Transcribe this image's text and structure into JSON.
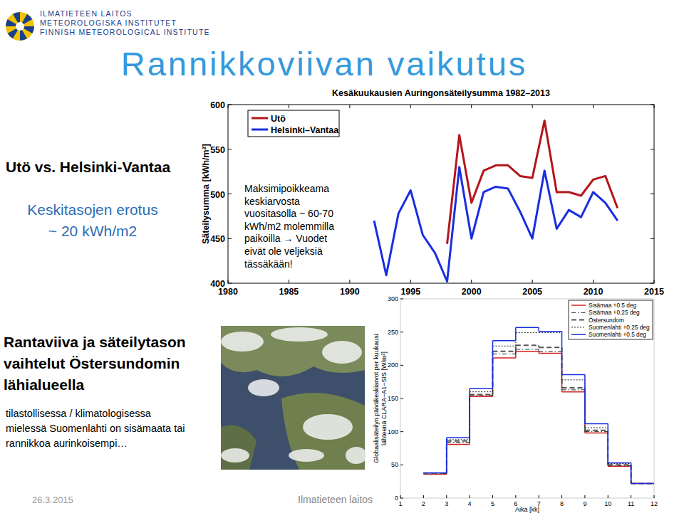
{
  "slide": {
    "logo": [
      "ILMATIETEEN LAITOS",
      "METEOROLOGISKA INSTITUTET",
      "FINNISH METEOROLOGICAL INSTITUTE"
    ],
    "title": "Rannikkoviivan vaikutus",
    "heading1": "Utö vs. Helsinki-Vantaa",
    "note1": [
      "Keskitasojen erotus",
      "~ 20 kWh/m2"
    ],
    "heading2": [
      "Rantaviiva ja säteilytason",
      "vaihtelut Östersundomin",
      "lähialueella"
    ],
    "note2": [
      "tilastollisessa / klimatologisessa",
      "mielessä Suomenlahti on sisämaata tai",
      "rannikkoa aurinkoisempi…"
    ],
    "footer_date": "26.3.2015",
    "footer_org": "Ilmatieteen laitos"
  },
  "chart_data": [
    {
      "type": "line",
      "title": "Kesäkuukausien Auringonsäteilysumma 1982–2013",
      "y_label": "Säteilysumma [kWh/m²]",
      "annotation": [
        "Maksimipoikkeama",
        "keskiarvosta",
        "vuositasolla ~ 60-70",
        "kWh/m2 molemmilla",
        "paikoilla → Vuodet",
        "eivät ole veljeksiä",
        "tässäkään!"
      ],
      "x": [
        1992,
        1993,
        1994,
        1995,
        1996,
        1997,
        1998,
        1999,
        2000,
        2001,
        2002,
        2003,
        2004,
        2005,
        2006,
        2007,
        2008,
        2009,
        2010,
        2011,
        2012
      ],
      "series": [
        {
          "name": "Utö",
          "color": "#b3161c",
          "values": [
            null,
            null,
            null,
            null,
            null,
            null,
            444,
            566,
            490,
            526,
            532,
            532,
            520,
            518,
            582,
            502,
            502,
            498,
            516,
            520,
            484
          ]
        },
        {
          "name": "Helsinki–Vantaa",
          "color": "#1a2ee0",
          "values": [
            470,
            409,
            478,
            504,
            454,
            434,
            402,
            530,
            450,
            502,
            508,
            506,
            480,
            450,
            526,
            461,
            482,
            474,
            502,
            490,
            470
          ]
        }
      ],
      "xlim": [
        1980,
        2015
      ],
      "xticks": [
        1980,
        1985,
        1990,
        1995,
        2000,
        2005,
        2010,
        2015
      ],
      "ylim": [
        400,
        600
      ],
      "yticks": [
        400,
        450,
        500,
        550,
        600
      ],
      "legend": "upper left"
    },
    {
      "type": "step",
      "y_label": [
        "Globaalisäteilyn päiväkeskiarvot per kuukausi",
        "lähteenä CLARA−A1−SIS [W/m²]"
      ],
      "x_label": "Aika [kk]",
      "bins": [
        2,
        3,
        4,
        5,
        6,
        7,
        8,
        9,
        10,
        11,
        12
      ],
      "series": [
        {
          "name": "Sisämaa +0.5 deg",
          "color": "#d42020",
          "line_style": "solid",
          "values": [
            36,
            81,
            153,
            211,
            221,
            218,
            160,
            98,
            48,
            22
          ]
        },
        {
          "name": "Sisämaa +0.25 deg",
          "color": "#222222",
          "line_style": "dashdot",
          "values": [
            37,
            84,
            155,
            217,
            224,
            221,
            163,
            100,
            49,
            22
          ]
        },
        {
          "name": "Östersundom",
          "color": "#555555",
          "line_style": "dashed",
          "values": [
            37,
            86,
            156,
            221,
            230,
            227,
            166,
            102,
            50,
            22
          ]
        },
        {
          "name": "Suomenlahti +0.25 deg",
          "color": "#222222",
          "line_style": "dotted",
          "values": [
            38,
            88,
            160,
            229,
            249,
            249,
            178,
            106,
            52,
            22
          ]
        },
        {
          "name": "Suomenlahti +0.5 deg",
          "color": "#1a2ee0",
          "line_style": "solid",
          "values": [
            38,
            91,
            165,
            237,
            257,
            251,
            186,
            112,
            53,
            22
          ]
        }
      ],
      "xlim": [
        1,
        12
      ],
      "xticks": [
        1,
        2,
        3,
        4,
        5,
        6,
        7,
        8,
        9,
        10,
        11,
        12
      ],
      "ylim": [
        0,
        300
      ],
      "yticks": [
        0,
        50,
        100,
        150,
        200,
        250,
        300
      ],
      "legend": "upper right"
    }
  ]
}
